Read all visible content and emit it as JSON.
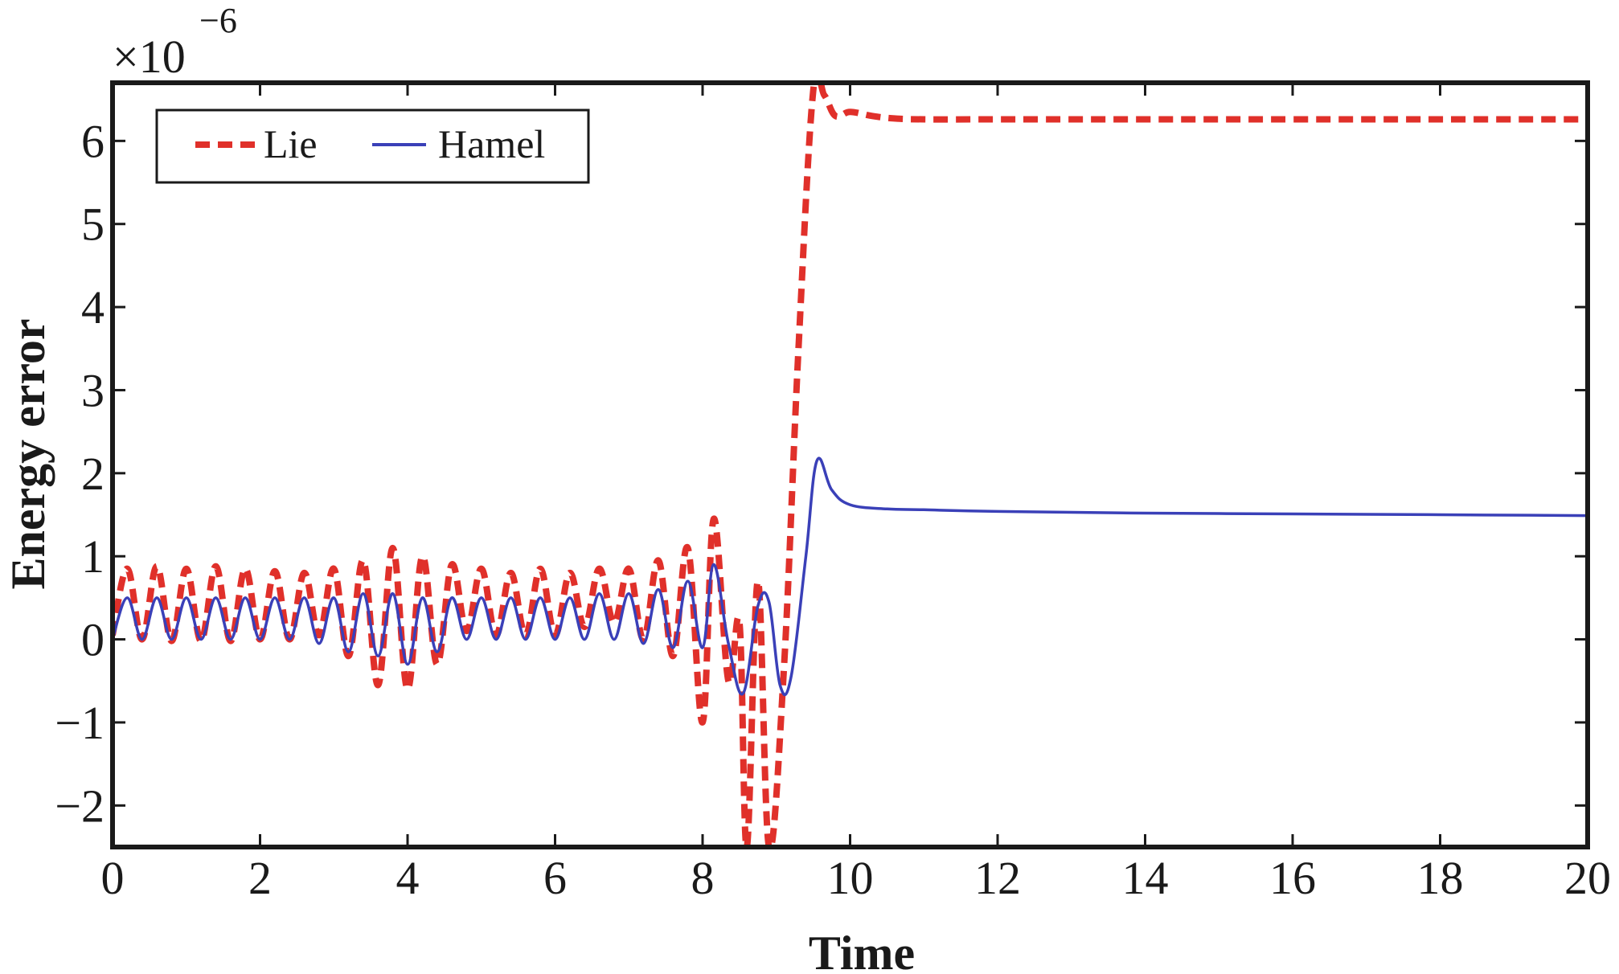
{
  "chart_data": {
    "type": "line",
    "xlabel": "Time",
    "ylabel": "Energy error",
    "y_multiplier": {
      "base": "×10",
      "exponent": "−6"
    },
    "xlim": [
      0,
      20
    ],
    "ylim": [
      -2.5,
      6.7
    ],
    "x_ticks": [
      0,
      2,
      4,
      6,
      8,
      10,
      12,
      14,
      16,
      18,
      20
    ],
    "x_tick_labels": [
      "0",
      "2",
      "4",
      "6",
      "8",
      "10",
      "12",
      "14",
      "16",
      "18",
      "20"
    ],
    "y_ticks": [
      -2,
      -1,
      0,
      1,
      2,
      3,
      4,
      5,
      6
    ],
    "y_tick_labels": [
      "−2",
      "−1",
      "0",
      "1",
      "2",
      "3",
      "4",
      "5",
      "6"
    ],
    "legend_position": "top-left",
    "series": [
      {
        "name": "Lie",
        "color": "#e0302a",
        "style": "dashed",
        "x": [
          0,
          0.2,
          0.4,
          0.6,
          0.8,
          1.0,
          1.2,
          1.4,
          1.6,
          1.8,
          2.0,
          2.2,
          2.4,
          2.6,
          2.8,
          3.0,
          3.2,
          3.4,
          3.6,
          3.8,
          4.0,
          4.2,
          4.4,
          4.6,
          4.8,
          5.0,
          5.2,
          5.4,
          5.6,
          5.8,
          6.0,
          6.2,
          6.4,
          6.6,
          6.8,
          7.0,
          7.2,
          7.4,
          7.6,
          7.8,
          8.0,
          8.15,
          8.35,
          8.5,
          8.6,
          8.75,
          8.9,
          9.1,
          9.3,
          9.5,
          9.65,
          9.8,
          10.0,
          10.3,
          10.6,
          11.0,
          12.0,
          14.0,
          16.0,
          18.0,
          20.0
        ],
        "y": [
          0.05,
          0.85,
          0.0,
          0.88,
          -0.02,
          0.85,
          -0.02,
          0.88,
          -0.02,
          0.85,
          0.0,
          0.82,
          0.0,
          0.8,
          0.05,
          0.85,
          -0.2,
          0.95,
          -0.55,
          1.1,
          -0.6,
          1.0,
          -0.3,
          0.9,
          0.1,
          0.85,
          0.05,
          0.8,
          0.05,
          0.85,
          0.05,
          0.8,
          0.15,
          0.85,
          0.2,
          0.85,
          0.0,
          0.95,
          -0.2,
          1.1,
          -1.0,
          1.45,
          -0.5,
          0.2,
          -2.5,
          0.7,
          -2.5,
          -0.4,
          3.5,
          6.6,
          6.55,
          6.3,
          6.35,
          6.3,
          6.27,
          6.26,
          6.26,
          6.26,
          6.26,
          6.26,
          6.26
        ]
      },
      {
        "name": "Hamel",
        "color": "#3a40b8",
        "style": "solid",
        "x": [
          0,
          0.2,
          0.4,
          0.6,
          0.8,
          1.0,
          1.2,
          1.4,
          1.6,
          1.8,
          2.0,
          2.2,
          2.4,
          2.6,
          2.8,
          3.0,
          3.2,
          3.4,
          3.6,
          3.8,
          4.0,
          4.2,
          4.4,
          4.6,
          4.8,
          5.0,
          5.2,
          5.4,
          5.6,
          5.8,
          6.0,
          6.2,
          6.4,
          6.6,
          6.8,
          7.0,
          7.2,
          7.4,
          7.6,
          7.8,
          8.0,
          8.15,
          8.35,
          8.55,
          8.75,
          8.9,
          9.05,
          9.2,
          9.4,
          9.55,
          9.75,
          10.0,
          10.5,
          11.0,
          12.0,
          14.0,
          16.0,
          18.0,
          20.0
        ],
        "y": [
          0.0,
          0.5,
          0.0,
          0.5,
          0.0,
          0.5,
          0.0,
          0.5,
          0.0,
          0.5,
          0.0,
          0.5,
          0.0,
          0.5,
          -0.05,
          0.5,
          -0.15,
          0.55,
          -0.2,
          0.55,
          -0.3,
          0.5,
          -0.15,
          0.5,
          0.0,
          0.5,
          0.0,
          0.5,
          0.0,
          0.5,
          0.0,
          0.5,
          0.0,
          0.55,
          0.0,
          0.55,
          -0.05,
          0.6,
          -0.1,
          0.7,
          -0.1,
          0.9,
          -0.05,
          -0.65,
          0.4,
          0.45,
          -0.55,
          -0.45,
          1.0,
          2.15,
          1.8,
          1.62,
          1.57,
          1.56,
          1.54,
          1.52,
          1.51,
          1.5,
          1.49
        ]
      }
    ]
  }
}
